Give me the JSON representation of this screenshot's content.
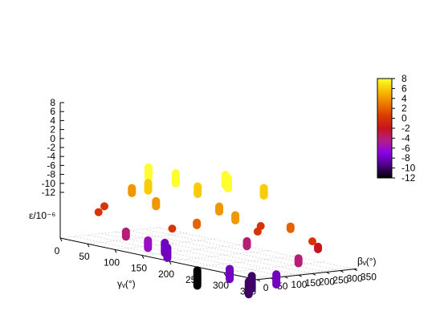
{
  "chart_data": {
    "type": "scatter",
    "title": "",
    "xlabel": "γᵥ(°)",
    "ylabel": "βᵥ(°)",
    "zlabel": "ε/10⁻⁶",
    "xlim": [
      0,
      360
    ],
    "ylim": [
      0,
      360
    ],
    "zlim": [
      -12,
      8
    ],
    "x_ticks": [
      "0",
      "50",
      "100",
      "150",
      "200",
      "250",
      "300",
      "350"
    ],
    "y_ticks": [
      "0",
      "50",
      "100",
      "150",
      "200",
      "250",
      "300",
      "350"
    ],
    "z_ticks": [
      "8",
      "6",
      "4",
      "2",
      "0",
      "-2",
      "-4",
      "-6",
      "-8",
      "-10",
      "-12"
    ],
    "colorbar": {
      "range": [
        -12,
        8
      ],
      "ticks": [
        "8",
        "6",
        "4",
        "2",
        "0",
        "-2",
        "-4",
        "-6",
        "-8",
        "-10",
        "-12"
      ],
      "palette": [
        "#000000",
        "#4b0082",
        "#8b00e8",
        "#b0208a",
        "#c8141e",
        "#d93c00",
        "#ec7c00",
        "#f7bf00",
        "#ffff30"
      ]
    },
    "grid": true,
    "points": [
      {
        "gamma": 190,
        "beta": 120,
        "eps": -12
      },
      {
        "gamma": 290,
        "beta": 40,
        "eps": -8
      },
      {
        "gamma": 330,
        "beta": 30,
        "eps": -10
      },
      {
        "gamma": 300,
        "beta": 100,
        "eps": -10
      },
      {
        "gamma": 350,
        "beta": 90,
        "eps": -8
      },
      {
        "gamma": 360,
        "beta": 150,
        "eps": -4
      },
      {
        "gamma": 350,
        "beta": 240,
        "eps": -2
      },
      {
        "gamma": 360,
        "beta": 200,
        "eps": 0
      },
      {
        "gamma": 320,
        "beta": 200,
        "eps": 2
      },
      {
        "gamma": 280,
        "beta": 80,
        "eps": 4
      },
      {
        "gamma": 240,
        "beta": 20,
        "eps": 2
      },
      {
        "gamma": 200,
        "beta": 10,
        "eps": 0
      },
      {
        "gamma": 150,
        "beta": 50,
        "eps": 4
      },
      {
        "gamma": 100,
        "beta": 120,
        "eps": 6
      },
      {
        "gamma": 70,
        "beta": 180,
        "eps": 8
      },
      {
        "gamma": 120,
        "beta": 180,
        "eps": 8
      },
      {
        "gamma": 150,
        "beta": 200,
        "eps": 6
      },
      {
        "gamma": 180,
        "beta": 250,
        "eps": 8
      },
      {
        "gamma": 160,
        "beta": 280,
        "eps": 8
      },
      {
        "gamma": 200,
        "beta": 340,
        "eps": 6
      },
      {
        "gamma": 240,
        "beta": 250,
        "eps": 0
      },
      {
        "gamma": 230,
        "beta": 220,
        "eps": -4
      },
      {
        "gamma": 270,
        "beta": 180,
        "eps": 0
      },
      {
        "gamma": 220,
        "beta": 140,
        "eps": 4
      },
      {
        "gamma": 120,
        "beta": 80,
        "eps": -6
      },
      {
        "gamma": 100,
        "beta": 40,
        "eps": -4
      },
      {
        "gamma": 60,
        "beta": 20,
        "eps": 0
      },
      {
        "gamma": 30,
        "beta": 100,
        "eps": 0
      },
      {
        "gamma": 60,
        "beta": 140,
        "eps": 4
      },
      {
        "gamma": 100,
        "beta": 180,
        "eps": -8
      },
      {
        "gamma": 130,
        "beta": 130,
        "eps": -8
      }
    ]
  }
}
